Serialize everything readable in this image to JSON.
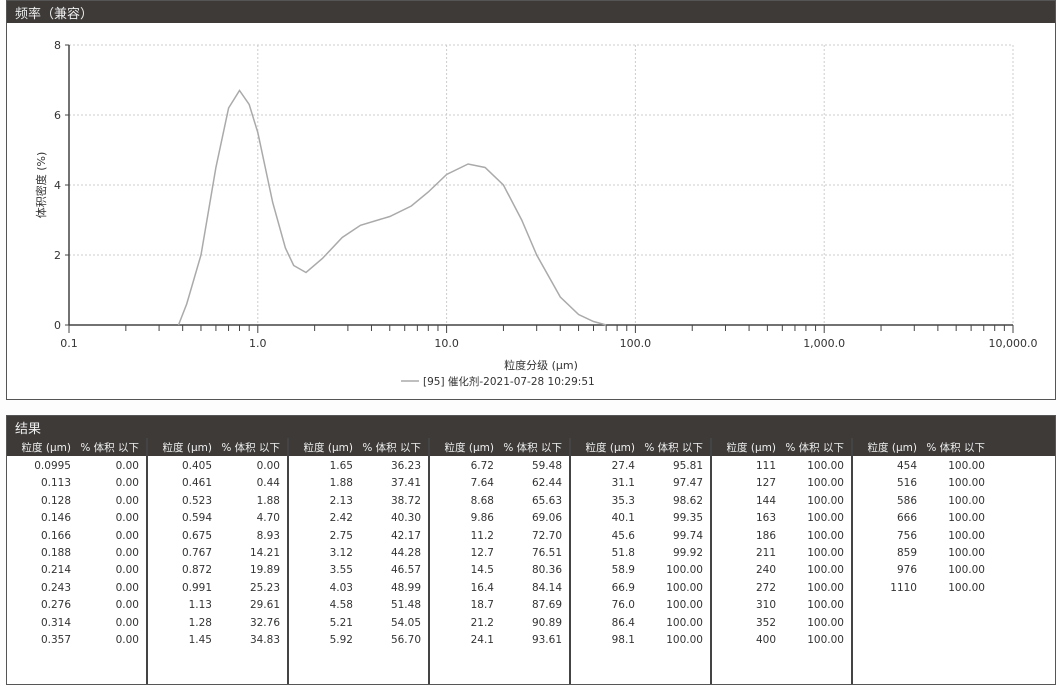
{
  "chart_panel": {
    "title": "频率（兼容）"
  },
  "chart_data": {
    "type": "line",
    "xlabel": "粒度分级 (μm)",
    "ylabel": "体积密度 (%)",
    "xscale": "log",
    "xlim": [
      0.1,
      10000
    ],
    "ylim": [
      0,
      8
    ],
    "xticks": [
      "0.1",
      "1.0",
      "10.0",
      "100.0",
      "1,000.0",
      "10,000.0"
    ],
    "yticks": [
      "0",
      "2",
      "4",
      "6",
      "8"
    ],
    "grid": true,
    "legend_position": "bottom-center",
    "series": [
      {
        "name": "[95] 催化剂-2021-07-28 10:29:51",
        "color": "#aaaaaa",
        "x": [
          0.38,
          0.42,
          0.5,
          0.6,
          0.7,
          0.8,
          0.9,
          1.0,
          1.2,
          1.4,
          1.55,
          1.8,
          2.2,
          2.8,
          3.5,
          5,
          6.5,
          8,
          10,
          13,
          16,
          20,
          25,
          30,
          40,
          50,
          60,
          70
        ],
        "y": [
          0,
          0.6,
          2.0,
          4.5,
          6.2,
          6.7,
          6.3,
          5.5,
          3.5,
          2.2,
          1.7,
          1.5,
          1.9,
          2.5,
          2.85,
          3.1,
          3.4,
          3.8,
          4.3,
          4.6,
          4.5,
          4.0,
          3.0,
          2.0,
          0.8,
          0.3,
          0.1,
          0
        ]
      }
    ]
  },
  "results": {
    "title": "结果",
    "col_size": "粒度 (μm)",
    "col_pct": "% 体积 以下",
    "groups": [
      [
        [
          "0.0995",
          "0.00"
        ],
        [
          "0.113",
          "0.00"
        ],
        [
          "0.128",
          "0.00"
        ],
        [
          "0.146",
          "0.00"
        ],
        [
          "0.166",
          "0.00"
        ],
        [
          "0.188",
          "0.00"
        ],
        [
          "0.214",
          "0.00"
        ],
        [
          "0.243",
          "0.00"
        ],
        [
          "0.276",
          "0.00"
        ],
        [
          "0.314",
          "0.00"
        ],
        [
          "0.357",
          "0.00"
        ]
      ],
      [
        [
          "0.405",
          "0.00"
        ],
        [
          "0.461",
          "0.44"
        ],
        [
          "0.523",
          "1.88"
        ],
        [
          "0.594",
          "4.70"
        ],
        [
          "0.675",
          "8.93"
        ],
        [
          "0.767",
          "14.21"
        ],
        [
          "0.872",
          "19.89"
        ],
        [
          "0.991",
          "25.23"
        ],
        [
          "1.13",
          "29.61"
        ],
        [
          "1.28",
          "32.76"
        ],
        [
          "1.45",
          "34.83"
        ]
      ],
      [
        [
          "1.65",
          "36.23"
        ],
        [
          "1.88",
          "37.41"
        ],
        [
          "2.13",
          "38.72"
        ],
        [
          "2.42",
          "40.30"
        ],
        [
          "2.75",
          "42.17"
        ],
        [
          "3.12",
          "44.28"
        ],
        [
          "3.55",
          "46.57"
        ],
        [
          "4.03",
          "48.99"
        ],
        [
          "4.58",
          "51.48"
        ],
        [
          "5.21",
          "54.05"
        ],
        [
          "5.92",
          "56.70"
        ]
      ],
      [
        [
          "6.72",
          "59.48"
        ],
        [
          "7.64",
          "62.44"
        ],
        [
          "8.68",
          "65.63"
        ],
        [
          "9.86",
          "69.06"
        ],
        [
          "11.2",
          "72.70"
        ],
        [
          "12.7",
          "76.51"
        ],
        [
          "14.5",
          "80.36"
        ],
        [
          "16.4",
          "84.14"
        ],
        [
          "18.7",
          "87.69"
        ],
        [
          "21.2",
          "90.89"
        ],
        [
          "24.1",
          "93.61"
        ]
      ],
      [
        [
          "27.4",
          "95.81"
        ],
        [
          "31.1",
          "97.47"
        ],
        [
          "35.3",
          "98.62"
        ],
        [
          "40.1",
          "99.35"
        ],
        [
          "45.6",
          "99.74"
        ],
        [
          "51.8",
          "99.92"
        ],
        [
          "58.9",
          "100.00"
        ],
        [
          "66.9",
          "100.00"
        ],
        [
          "76.0",
          "100.00"
        ],
        [
          "86.4",
          "100.00"
        ],
        [
          "98.1",
          "100.00"
        ]
      ],
      [
        [
          "111",
          "100.00"
        ],
        [
          "127",
          "100.00"
        ],
        [
          "144",
          "100.00"
        ],
        [
          "163",
          "100.00"
        ],
        [
          "186",
          "100.00"
        ],
        [
          "211",
          "100.00"
        ],
        [
          "240",
          "100.00"
        ],
        [
          "272",
          "100.00"
        ],
        [
          "310",
          "100.00"
        ],
        [
          "352",
          "100.00"
        ],
        [
          "400",
          "100.00"
        ]
      ],
      [
        [
          "454",
          "100.00"
        ],
        [
          "516",
          "100.00"
        ],
        [
          "586",
          "100.00"
        ],
        [
          "666",
          "100.00"
        ],
        [
          "756",
          "100.00"
        ],
        [
          "859",
          "100.00"
        ],
        [
          "976",
          "100.00"
        ],
        [
          "1110",
          "100.00"
        ]
      ]
    ]
  }
}
